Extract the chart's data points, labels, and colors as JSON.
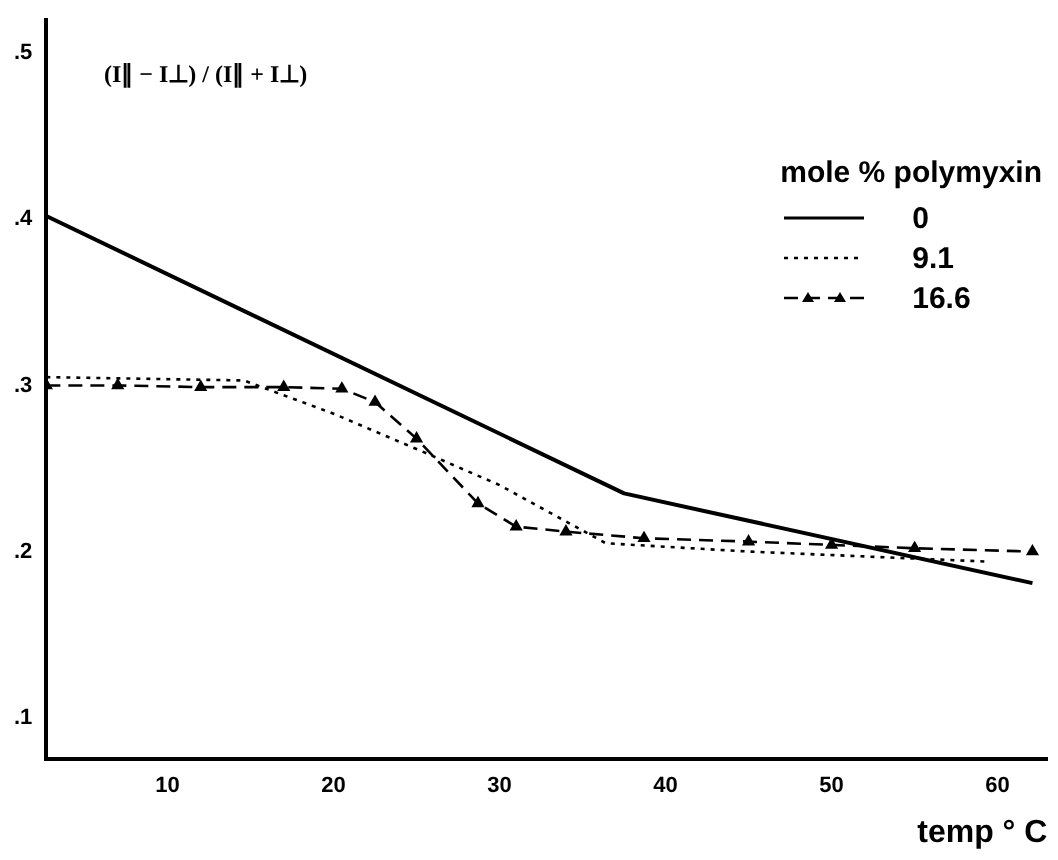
{
  "chart_data": {
    "type": "line",
    "xlabel": "temp ° C",
    "ylabel": "(I∥ − I⊥) / (I∥ + I⊥)",
    "legend_title": "mole % polymyxin",
    "legend": "top right",
    "grid": false,
    "xlim": [
      2.7,
      63
    ],
    "ylim": [
      0.075,
      0.52
    ],
    "xticks": [
      10,
      20,
      30,
      40,
      50,
      60
    ],
    "yticks": [
      {
        "value": 0.1,
        "label": ".1"
      },
      {
        "value": 0.2,
        "label": ".2"
      },
      {
        "value": 0.3,
        "label": ".3"
      },
      {
        "value": 0.4,
        "label": ".4"
      },
      {
        "value": 0.5,
        "label": ".5"
      }
    ],
    "series": [
      {
        "name": "0",
        "color": "#000000",
        "line_style": "solid",
        "marker": "none",
        "x": [
          2.7,
          37.5,
          62.1
        ],
        "values": [
          0.402,
          0.235,
          0.181
        ]
      },
      {
        "name": "9.1",
        "color": "#000000",
        "line_style": "dotted",
        "marker": "none",
        "x": [
          2.7,
          14.6,
          20,
          25.4,
          30,
          36.4,
          45,
          59.3
        ],
        "values": [
          0.305,
          0.303,
          0.283,
          0.26,
          0.24,
          0.205,
          0.2,
          0.194
        ]
      },
      {
        "name": "16.6",
        "color": "#000000",
        "line_style": "dashed",
        "marker": "triangle",
        "x": [
          2.7,
          7,
          12,
          17,
          20.5,
          22.5,
          25,
          28.7,
          31,
          34,
          38.7,
          45,
          50,
          55,
          62.1
        ],
        "values": [
          0.3,
          0.3,
          0.299,
          0.299,
          0.298,
          0.29,
          0.268,
          0.229,
          0.215,
          0.212,
          0.208,
          0.206,
          0.204,
          0.202,
          0.2
        ]
      }
    ]
  }
}
